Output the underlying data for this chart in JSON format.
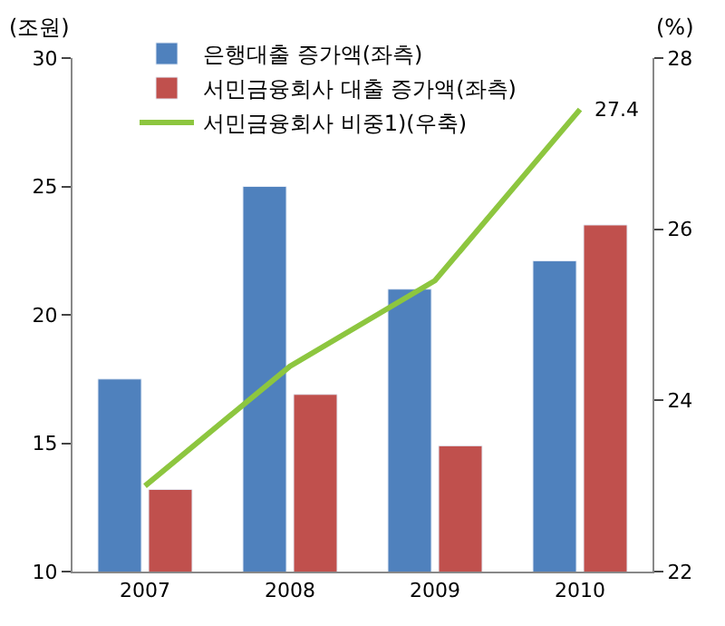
{
  "chart_data": {
    "type": "bar",
    "categories": [
      "2007",
      "2008",
      "2009",
      "2010"
    ],
    "ylabel": "(조원)",
    "y2label": "(%)",
    "ylim": [
      10,
      30
    ],
    "yticks": [
      10,
      15,
      20,
      25,
      30
    ],
    "y2lim": [
      22,
      28
    ],
    "y2ticks": [
      22,
      24,
      26,
      28
    ],
    "series": [
      {
        "name": "은행대출 증가액(좌측)",
        "color": "#4f81bd",
        "values": [
          17.5,
          25.0,
          21.0,
          22.1
        ]
      },
      {
        "name": "서민금융회사 대출 증가액(좌측)",
        "color": "#c0504d",
        "values": [
          13.2,
          16.9,
          14.9,
          23.5
        ]
      },
      {
        "name": "서민금융회사 비중1)(우축)",
        "type": "line",
        "axis": "y2",
        "color": "#8dc63f",
        "values": [
          23.0,
          24.4,
          25.4,
          27.4
        ],
        "marker": "none",
        "line_style": "solid"
      }
    ],
    "annotations": [
      {
        "text": "27.4",
        "x": "2010",
        "y": 27.4
      }
    ],
    "legend": "top left"
  }
}
